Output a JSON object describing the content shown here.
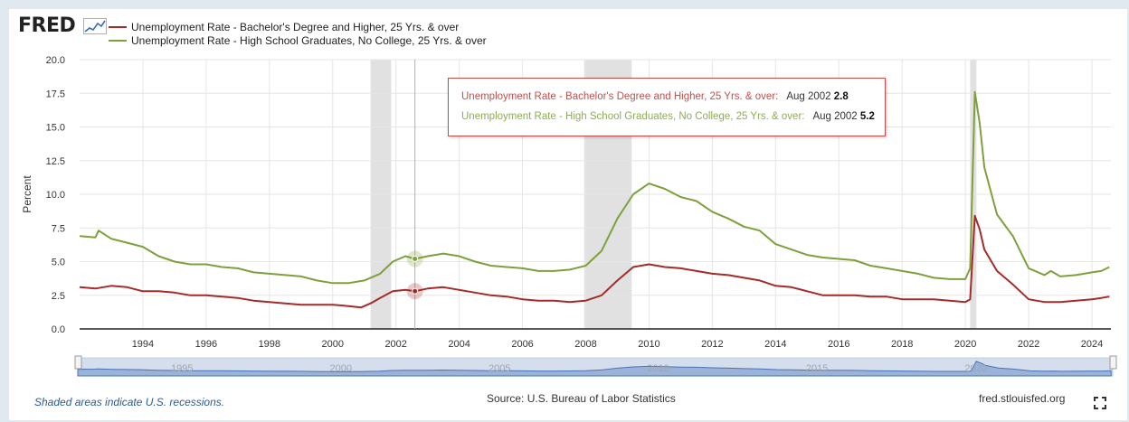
{
  "header": {
    "logo_text": "FRED",
    "logo_graph_icon": "line-graph-icon"
  },
  "legend": [
    {
      "label": "Unemployment Rate - Bachelor's Degree and Higher, 25 Yrs. & over",
      "color": "#a52a2a"
    },
    {
      "label": "Unemployment Rate - High School Graduates, No College, 25 Yrs. & over",
      "color": "#7ea03c"
    }
  ],
  "tooltip": {
    "series1_label": "Unemployment Rate - Bachelor's Degree and Higher, 25 Yrs. & over:",
    "series1_date": "Aug 2002",
    "series1_value": "2.8",
    "series2_label": "Unemployment Rate - High School Graduates, No College, 25 Yrs. & over:",
    "series2_date": "Aug 2002",
    "series2_value": "5.2",
    "series1_color": "#c0504d",
    "series2_color": "#8cae52"
  },
  "footer": {
    "recession_note": "Shaded areas indicate U.S. recessions.",
    "source": "Source: U.S. Bureau of Labor Statistics",
    "site": "fred.stlouisfed.org",
    "fullscreen_icon": "fullscreen-icon"
  },
  "navigator": {
    "labels": [
      "1995",
      "2000",
      "2005",
      "2010",
      "2015",
      "2020"
    ]
  },
  "chart_data": {
    "type": "line",
    "ylabel": "Percent",
    "ylim": [
      0,
      20
    ],
    "yticks": [
      "0.0",
      "2.5",
      "5.0",
      "7.5",
      "10.0",
      "12.5",
      "15.0",
      "17.5",
      "20.0"
    ],
    "xlim": [
      1992.0,
      2024.6
    ],
    "xticks": [
      "1994",
      "1996",
      "1998",
      "2000",
      "2002",
      "2004",
      "2006",
      "2008",
      "2010",
      "2012",
      "2014",
      "2016",
      "2018",
      "2020",
      "2022",
      "2024"
    ],
    "grid": true,
    "recessions": [
      [
        2001.2,
        2001.85
      ],
      [
        2007.95,
        2009.45
      ],
      [
        2020.15,
        2020.35
      ]
    ],
    "crosshair_x": 2002.6,
    "series": [
      {
        "name": "Unemployment Rate - Bachelor's Degree and Higher, 25 Yrs. & over",
        "color": "#a52a2a",
        "points": [
          [
            1992.0,
            3.1
          ],
          [
            1992.5,
            3.0
          ],
          [
            1993.0,
            3.2
          ],
          [
            1993.5,
            3.1
          ],
          [
            1994.0,
            2.8
          ],
          [
            1994.5,
            2.8
          ],
          [
            1995.0,
            2.7
          ],
          [
            1995.5,
            2.5
          ],
          [
            1996.0,
            2.5
          ],
          [
            1996.5,
            2.4
          ],
          [
            1997.0,
            2.3
          ],
          [
            1997.5,
            2.1
          ],
          [
            1998.0,
            2.0
          ],
          [
            1998.5,
            1.9
          ],
          [
            1999.0,
            1.8
          ],
          [
            1999.5,
            1.8
          ],
          [
            2000.0,
            1.8
          ],
          [
            2000.5,
            1.7
          ],
          [
            2000.9,
            1.6
          ],
          [
            2001.2,
            1.9
          ],
          [
            2001.5,
            2.3
          ],
          [
            2001.9,
            2.8
          ],
          [
            2002.3,
            2.9
          ],
          [
            2002.6,
            2.8
          ],
          [
            2003.0,
            3.0
          ],
          [
            2003.5,
            3.1
          ],
          [
            2004.0,
            2.9
          ],
          [
            2004.5,
            2.7
          ],
          [
            2005.0,
            2.5
          ],
          [
            2005.5,
            2.4
          ],
          [
            2006.0,
            2.2
          ],
          [
            2006.5,
            2.1
          ],
          [
            2007.0,
            2.1
          ],
          [
            2007.5,
            2.0
          ],
          [
            2008.0,
            2.1
          ],
          [
            2008.5,
            2.5
          ],
          [
            2009.0,
            3.6
          ],
          [
            2009.5,
            4.6
          ],
          [
            2010.0,
            4.8
          ],
          [
            2010.5,
            4.6
          ],
          [
            2011.0,
            4.5
          ],
          [
            2011.5,
            4.3
          ],
          [
            2012.0,
            4.1
          ],
          [
            2012.5,
            4.0
          ],
          [
            2013.0,
            3.8
          ],
          [
            2013.5,
            3.6
          ],
          [
            2014.0,
            3.2
          ],
          [
            2014.5,
            3.1
          ],
          [
            2015.0,
            2.8
          ],
          [
            2015.5,
            2.5
          ],
          [
            2016.0,
            2.5
          ],
          [
            2016.5,
            2.5
          ],
          [
            2017.0,
            2.4
          ],
          [
            2017.5,
            2.4
          ],
          [
            2018.0,
            2.2
          ],
          [
            2018.5,
            2.2
          ],
          [
            2019.0,
            2.2
          ],
          [
            2019.5,
            2.1
          ],
          [
            2020.0,
            2.0
          ],
          [
            2020.15,
            2.2
          ],
          [
            2020.3,
            8.4
          ],
          [
            2020.45,
            7.4
          ],
          [
            2020.6,
            5.9
          ],
          [
            2021.0,
            4.3
          ],
          [
            2021.5,
            3.3
          ],
          [
            2022.0,
            2.2
          ],
          [
            2022.5,
            2.0
          ],
          [
            2023.0,
            2.0
          ],
          [
            2023.5,
            2.1
          ],
          [
            2024.0,
            2.2
          ],
          [
            2024.3,
            2.3
          ],
          [
            2024.55,
            2.4
          ]
        ]
      },
      {
        "name": "Unemployment Rate - High School Graduates, No College, 25 Yrs. & over",
        "color": "#7ea03c",
        "points": [
          [
            1992.0,
            6.9
          ],
          [
            1992.5,
            6.8
          ],
          [
            1992.6,
            7.3
          ],
          [
            1993.0,
            6.7
          ],
          [
            1993.5,
            6.4
          ],
          [
            1994.0,
            6.1
          ],
          [
            1994.5,
            5.4
          ],
          [
            1995.0,
            5.0
          ],
          [
            1995.5,
            4.8
          ],
          [
            1996.0,
            4.8
          ],
          [
            1996.5,
            4.6
          ],
          [
            1997.0,
            4.5
          ],
          [
            1997.5,
            4.2
          ],
          [
            1998.0,
            4.1
          ],
          [
            1998.5,
            4.0
          ],
          [
            1999.0,
            3.9
          ],
          [
            1999.5,
            3.6
          ],
          [
            2000.0,
            3.4
          ],
          [
            2000.5,
            3.4
          ],
          [
            2001.0,
            3.6
          ],
          [
            2001.5,
            4.1
          ],
          [
            2001.9,
            5.0
          ],
          [
            2002.3,
            5.4
          ],
          [
            2002.6,
            5.2
          ],
          [
            2003.0,
            5.4
          ],
          [
            2003.5,
            5.6
          ],
          [
            2004.0,
            5.4
          ],
          [
            2004.5,
            5.0
          ],
          [
            2005.0,
            4.7
          ],
          [
            2005.5,
            4.6
          ],
          [
            2006.0,
            4.5
          ],
          [
            2006.5,
            4.3
          ],
          [
            2007.0,
            4.3
          ],
          [
            2007.5,
            4.4
          ],
          [
            2008.0,
            4.7
          ],
          [
            2008.5,
            5.8
          ],
          [
            2009.0,
            8.2
          ],
          [
            2009.5,
            10.0
          ],
          [
            2010.0,
            10.8
          ],
          [
            2010.5,
            10.4
          ],
          [
            2011.0,
            9.8
          ],
          [
            2011.5,
            9.5
          ],
          [
            2012.0,
            8.7
          ],
          [
            2012.5,
            8.2
          ],
          [
            2013.0,
            7.6
          ],
          [
            2013.5,
            7.3
          ],
          [
            2014.0,
            6.3
          ],
          [
            2014.5,
            5.9
          ],
          [
            2015.0,
            5.5
          ],
          [
            2015.5,
            5.3
          ],
          [
            2016.0,
            5.2
          ],
          [
            2016.5,
            5.1
          ],
          [
            2017.0,
            4.7
          ],
          [
            2017.5,
            4.5
          ],
          [
            2018.0,
            4.3
          ],
          [
            2018.5,
            4.1
          ],
          [
            2019.0,
            3.8
          ],
          [
            2019.5,
            3.7
          ],
          [
            2020.0,
            3.7
          ],
          [
            2020.15,
            4.5
          ],
          [
            2020.3,
            17.6
          ],
          [
            2020.45,
            15.3
          ],
          [
            2020.6,
            12.0
          ],
          [
            2021.0,
            8.5
          ],
          [
            2021.5,
            6.9
          ],
          [
            2022.0,
            4.5
          ],
          [
            2022.5,
            4.0
          ],
          [
            2022.7,
            4.3
          ],
          [
            2023.0,
            3.9
          ],
          [
            2023.5,
            4.0
          ],
          [
            2024.0,
            4.2
          ],
          [
            2024.3,
            4.3
          ],
          [
            2024.55,
            4.6
          ]
        ]
      }
    ]
  }
}
